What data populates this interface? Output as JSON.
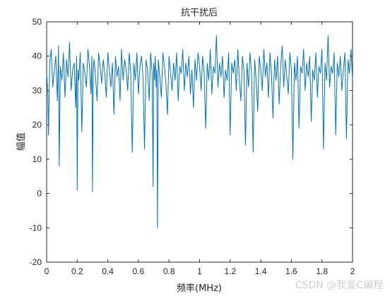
{
  "chart_data": {
    "type": "line",
    "title": "抗干扰后",
    "xlabel": "频率(MHz)",
    "ylabel": "幅值",
    "xlim": [
      0,
      2
    ],
    "ylim": [
      -20,
      50
    ],
    "x_ticks": [
      "0",
      "0.2",
      "0.4",
      "0.6",
      "0.8",
      "1",
      "1.2",
      "1.4",
      "1.6",
      "1.8",
      "2"
    ],
    "y_ticks": [
      "-20",
      "-10",
      "0",
      "10",
      "20",
      "30",
      "40",
      "50"
    ],
    "grid": false,
    "series": [
      {
        "color": "#0072BD",
        "x": [
          0,
          0.008,
          0.012,
          0.02,
          0.03,
          0.04,
          0.05,
          0.06,
          0.07,
          0.078,
          0.082,
          0.09,
          0.1,
          0.11,
          0.12,
          0.13,
          0.14,
          0.15,
          0.16,
          0.17,
          0.18,
          0.19,
          0.196,
          0.2,
          0.205,
          0.21,
          0.22,
          0.23,
          0.24,
          0.25,
          0.26,
          0.27,
          0.28,
          0.29,
          0.296,
          0.3,
          0.305,
          0.31,
          0.32,
          0.33,
          0.34,
          0.35,
          0.36,
          0.37,
          0.38,
          0.39,
          0.4,
          0.41,
          0.42,
          0.43,
          0.44,
          0.45,
          0.46,
          0.47,
          0.48,
          0.49,
          0.5,
          0.51,
          0.52,
          0.53,
          0.54,
          0.55,
          0.56,
          0.57,
          0.58,
          0.59,
          0.6,
          0.61,
          0.62,
          0.63,
          0.64,
          0.65,
          0.66,
          0.67,
          0.68,
          0.69,
          0.696,
          0.7,
          0.705,
          0.71,
          0.716,
          0.72,
          0.725,
          0.73,
          0.74,
          0.75,
          0.76,
          0.77,
          0.78,
          0.79,
          0.8,
          0.81,
          0.82,
          0.83,
          0.84,
          0.85,
          0.86,
          0.87,
          0.88,
          0.89,
          0.9,
          0.91,
          0.92,
          0.93,
          0.94,
          0.95,
          0.96,
          0.97,
          0.98,
          0.99,
          1.0,
          1.01,
          1.02,
          1.03,
          1.04,
          1.05,
          1.06,
          1.07,
          1.08,
          1.09,
          1.1,
          1.11,
          1.12,
          1.13,
          1.14,
          1.15,
          1.16,
          1.17,
          1.18,
          1.19,
          1.2,
          1.21,
          1.22,
          1.23,
          1.24,
          1.25,
          1.26,
          1.27,
          1.28,
          1.29,
          1.3,
          1.31,
          1.32,
          1.33,
          1.34,
          1.35,
          1.36,
          1.37,
          1.38,
          1.39,
          1.4,
          1.41,
          1.42,
          1.43,
          1.44,
          1.45,
          1.46,
          1.47,
          1.48,
          1.49,
          1.5,
          1.51,
          1.52,
          1.53,
          1.54,
          1.55,
          1.56,
          1.57,
          1.58,
          1.59,
          1.6,
          1.61,
          1.62,
          1.63,
          1.64,
          1.65,
          1.66,
          1.67,
          1.68,
          1.69,
          1.7,
          1.71,
          1.72,
          1.73,
          1.74,
          1.75,
          1.76,
          1.77,
          1.78,
          1.79,
          1.8,
          1.81,
          1.82,
          1.83,
          1.84,
          1.85,
          1.86,
          1.87,
          1.88,
          1.89,
          1.9,
          1.91,
          1.92,
          1.93,
          1.94,
          1.95,
          1.96,
          1.97,
          1.98,
          1.99,
          2.0
        ],
        "y": [
          35,
          29,
          17,
          38,
          42,
          31,
          36,
          40,
          27,
          43,
          8,
          37,
          33,
          41,
          28,
          39,
          34,
          44,
          30,
          36,
          38,
          25,
          40,
          1,
          36,
          33,
          41,
          18,
          38,
          35,
          31,
          42,
          37,
          29,
          40,
          0.5,
          36,
          39,
          34,
          27,
          41,
          37,
          32,
          39,
          35,
          28,
          41,
          36,
          31,
          38,
          23,
          40,
          34,
          37,
          27,
          42,
          33,
          39,
          36,
          30,
          41,
          35,
          12,
          38,
          33,
          41,
          29,
          37,
          40,
          34,
          13,
          39,
          36,
          27,
          41,
          35,
          2,
          38,
          33,
          40,
          31,
          36,
          -10,
          39,
          34,
          28,
          41,
          37,
          32,
          23,
          40,
          35,
          30,
          38,
          33,
          41,
          27,
          37,
          35,
          42,
          30,
          38,
          34,
          40,
          29,
          36,
          25,
          39,
          33,
          41,
          37,
          30,
          40,
          35,
          19,
          38,
          33,
          42,
          29,
          37,
          35,
          46,
          31,
          38,
          34,
          40,
          28,
          36,
          33,
          41,
          17,
          38,
          35,
          39,
          30,
          42,
          33,
          27,
          40,
          36,
          14,
          38,
          31,
          41,
          35,
          12,
          39,
          33,
          24,
          40,
          36,
          30,
          42,
          34,
          38,
          28,
          41,
          35,
          22,
          39,
          33,
          40,
          26,
          37,
          43,
          31,
          39,
          34,
          29,
          41,
          36,
          10,
          38,
          33,
          40,
          19,
          37,
          35,
          42,
          30,
          38,
          34,
          40,
          21,
          36,
          33,
          41,
          28,
          37,
          35,
          42,
          13,
          38,
          33,
          46,
          31,
          37,
          35,
          41,
          17,
          38,
          34,
          40,
          30,
          36,
          41,
          16,
          39,
          35,
          42,
          33
        ]
      }
    ]
  },
  "watermark": "CSDN @我爱C编程"
}
